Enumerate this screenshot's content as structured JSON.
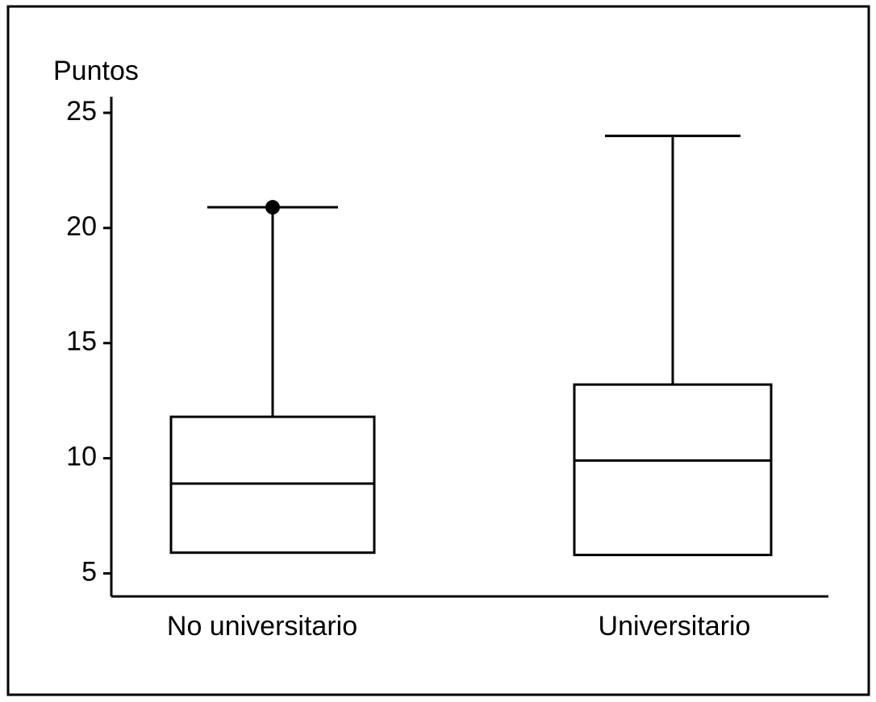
{
  "chart_data": {
    "type": "box",
    "y_label": "Puntos",
    "categories": [
      "No universitario",
      "Universitario"
    ],
    "boxes": [
      {
        "q1": 5.9,
        "median": 8.9,
        "q3": 11.8,
        "max": 20.9,
        "outliers": [
          20.9
        ]
      },
      {
        "q1": 5.8,
        "median": 9.9,
        "q3": 13.2,
        "max": 24
      }
    ],
    "color": "#000000",
    "ylim": [
      4,
      25.7
    ],
    "yticks": [
      5,
      10,
      15,
      20,
      25
    ],
    "grid": false
  }
}
